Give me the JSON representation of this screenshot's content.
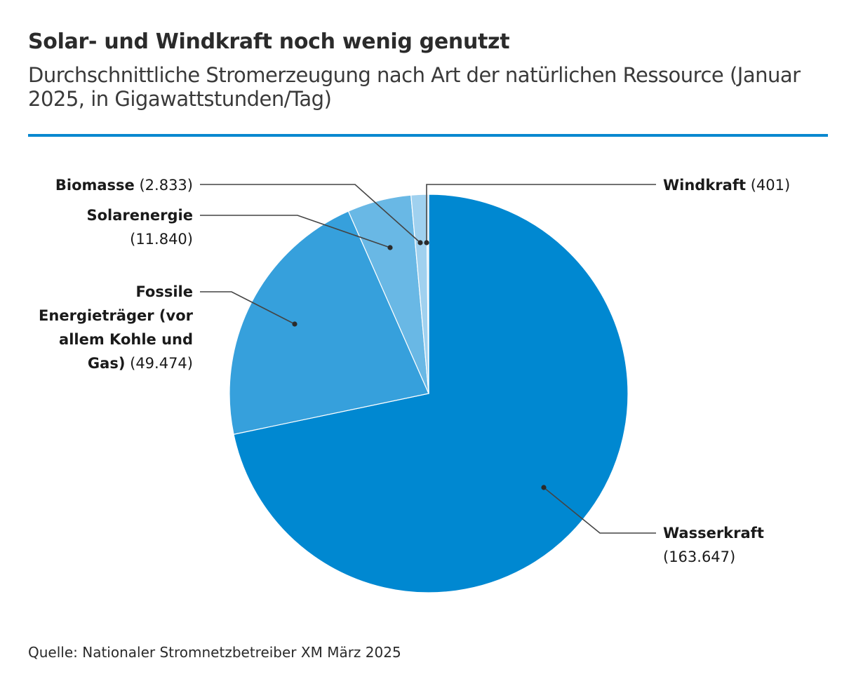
{
  "header": {
    "title": "Solar- und Windkraft noch wenig genutzt",
    "subtitle": "Durchschnittliche Stromerzeugung nach Art der natürlichen Ressource (Januar 2025, in Gigawattstunden/Tag)"
  },
  "chart_data": {
    "type": "pie",
    "title": "Solar- und Windkraft noch wenig genutzt",
    "subtitle": "Durchschnittliche Stromerzeugung nach Art der natürlichen Ressource (Januar 2025, in Gigawattstunden/Tag)",
    "unit": "Gigawattstunden/Tag",
    "start": "12 o'clock, clockwise",
    "slices": [
      {
        "key": "wasserkraft",
        "name": "Wasserkraft",
        "value": 163647,
        "value_label": "(163.647)",
        "color": "#0088d1"
      },
      {
        "key": "fossile",
        "name": "Fossile Energieträger (vor allem Kohle und Gas)",
        "value": 49474,
        "value_label": "(49.474)",
        "color": "#36a0dc"
      },
      {
        "key": "solar",
        "name": "Solarenergie",
        "value": 11840,
        "value_label": "(11.840)",
        "color": "#69b8e5"
      },
      {
        "key": "biomasse",
        "name": "Biomasse",
        "value": 2833,
        "value_label": "(2.833)",
        "color": "#a0d1ef"
      },
      {
        "key": "wind",
        "name": "Windkraft",
        "value": 401,
        "value_label": "(401)",
        "color": "#d1e9f8"
      }
    ]
  },
  "labels": {
    "biomasse": {
      "name": "Biomasse",
      "value": "(2.833)"
    },
    "solar": {
      "name": "Solarenergie",
      "value": "(11.840)"
    },
    "fossile": {
      "name_line1": "Fossile",
      "name_line2": "Energieträger (vor",
      "name_line3": "allem Kohle und",
      "name_line4": "Gas)",
      "value": "(49.474)"
    },
    "wind": {
      "name": "Windkraft",
      "value": "(401)"
    },
    "wasser": {
      "name": "Wasserkraft",
      "value": "(163.647)"
    }
  },
  "footer": {
    "source": "Quelle: Nationaler Stromnetzbetreiber XM März 2025"
  }
}
